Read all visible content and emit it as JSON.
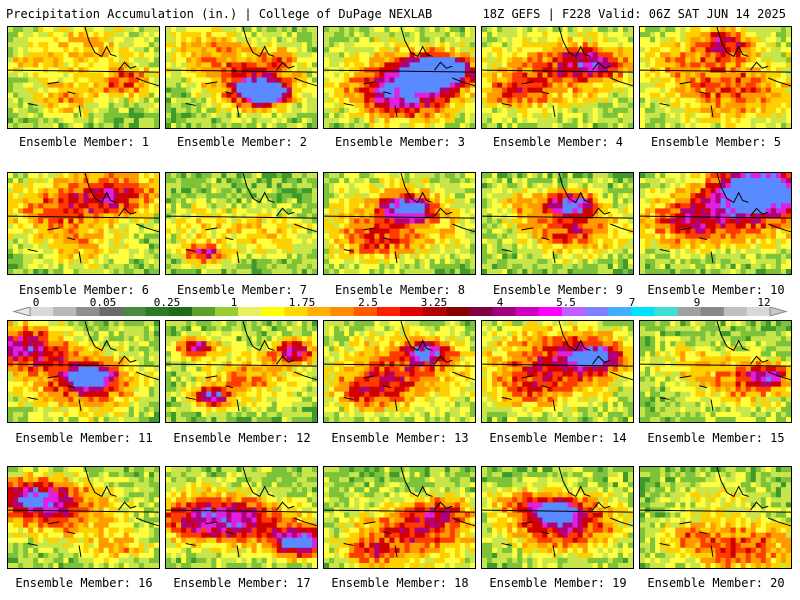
{
  "header": {
    "title_left": "Precipitation Accumulation (in.) | College of DuPage NEXLAB",
    "title_right": "18Z GEFS | F228 Valid: 06Z SAT JUN 14 2025"
  },
  "members": [
    "Ensemble Member: 1",
    "Ensemble Member: 2",
    "Ensemble Member: 3",
    "Ensemble Member: 4",
    "Ensemble Member: 5",
    "Ensemble Member: 6",
    "Ensemble Member: 7",
    "Ensemble Member: 8",
    "Ensemble Member: 9",
    "Ensemble Member: 10",
    "Ensemble Member: 11",
    "Ensemble Member: 12",
    "Ensemble Member: 13",
    "Ensemble Member: 14",
    "Ensemble Member: 15",
    "Ensemble Member: 16",
    "Ensemble Member: 17",
    "Ensemble Member: 18",
    "Ensemble Member: 19",
    "Ensemble Member: 20"
  ],
  "colorbar": {
    "labels": [
      "0",
      "0.05",
      "0.25",
      "1",
      "1.75",
      "2.5",
      "3.25",
      "4",
      "5.5",
      "7",
      "9",
      "12"
    ],
    "colors": [
      "#d9d9d9",
      "#b8b8b8",
      "#8f8f8f",
      "#6a6a6a",
      "#4a8a40",
      "#2e7a24",
      "#1e6b1a",
      "#5aa02a",
      "#9acd32",
      "#e8f060",
      "#ffff00",
      "#ffd800",
      "#ffb000",
      "#ff8c00",
      "#ff5a00",
      "#ff2000",
      "#e00000",
      "#b00000",
      "#8a0000",
      "#800040",
      "#a00080",
      "#d000c0",
      "#ff00ff",
      "#c060ff",
      "#8080ff",
      "#40b0ff",
      "#00e0ff",
      "#40e0d0",
      "#a0a0a0",
      "#888888",
      "#c0c0c0",
      "#d8d8d8"
    ]
  },
  "panel_fields": [
    [
      [
        0.5,
        0.2,
        0.3,
        0.25
      ],
      [
        0.4,
        0.7,
        0.18,
        0.3
      ],
      [
        0.15,
        0.35,
        0.12,
        0.18
      ],
      [
        0.8,
        0.55,
        0.15,
        0.38
      ]
    ],
    [
      [
        0.6,
        0.6,
        0.22,
        0.55
      ],
      [
        0.65,
        0.65,
        0.1,
        0.9
      ],
      [
        0.3,
        0.25,
        0.25,
        0.3
      ],
      [
        0.75,
        0.3,
        0.12,
        0.25
      ]
    ],
    [
      [
        0.55,
        0.55,
        0.35,
        0.45
      ],
      [
        0.75,
        0.45,
        0.15,
        0.9
      ],
      [
        0.8,
        0.42,
        0.08,
        1.0
      ],
      [
        0.5,
        0.7,
        0.2,
        0.35
      ]
    ],
    [
      [
        0.45,
        0.45,
        0.35,
        0.35
      ],
      [
        0.2,
        0.65,
        0.15,
        0.28
      ],
      [
        0.75,
        0.35,
        0.18,
        0.4
      ]
    ],
    [
      [
        0.6,
        0.6,
        0.35,
        0.4
      ],
      [
        0.55,
        0.15,
        0.15,
        0.45
      ],
      [
        0.2,
        0.3,
        0.2,
        0.18
      ]
    ],
    [
      [
        0.35,
        0.35,
        0.3,
        0.38
      ],
      [
        0.75,
        0.2,
        0.22,
        0.42
      ],
      [
        0.5,
        0.75,
        0.2,
        0.22
      ]
    ],
    [
      [
        0.25,
        0.5,
        0.2,
        0.22
      ],
      [
        0.25,
        0.8,
        0.1,
        0.55
      ],
      [
        0.7,
        0.6,
        0.2,
        0.25
      ]
    ],
    [
      [
        0.5,
        0.45,
        0.35,
        0.35
      ],
      [
        0.55,
        0.35,
        0.12,
        0.55
      ],
      [
        0.3,
        0.7,
        0.18,
        0.25
      ]
    ],
    [
      [
        0.6,
        0.55,
        0.25,
        0.45
      ],
      [
        0.6,
        0.3,
        0.12,
        0.55
      ],
      [
        0.3,
        0.3,
        0.15,
        0.25
      ]
    ],
    [
      [
        0.75,
        0.3,
        0.35,
        0.55
      ],
      [
        0.8,
        0.15,
        0.18,
        0.7
      ],
      [
        0.3,
        0.5,
        0.25,
        0.35
      ]
    ],
    [
      [
        0.1,
        0.25,
        0.22,
        0.55
      ],
      [
        0.5,
        0.6,
        0.3,
        0.48
      ],
      [
        0.55,
        0.55,
        0.1,
        0.65
      ]
    ],
    [
      [
        0.2,
        0.25,
        0.1,
        0.6
      ],
      [
        0.3,
        0.75,
        0.1,
        0.6
      ],
      [
        0.85,
        0.3,
        0.12,
        0.55
      ],
      [
        0.55,
        0.55,
        0.25,
        0.3
      ]
    ],
    [
      [
        0.5,
        0.5,
        0.35,
        0.38
      ],
      [
        0.7,
        0.3,
        0.12,
        0.55
      ],
      [
        0.3,
        0.7,
        0.18,
        0.28
      ]
    ],
    [
      [
        0.5,
        0.4,
        0.35,
        0.45
      ],
      [
        0.75,
        0.35,
        0.15,
        0.5
      ],
      [
        0.3,
        0.7,
        0.2,
        0.22
      ]
    ],
    [
      [
        0.7,
        0.6,
        0.25,
        0.35
      ],
      [
        0.3,
        0.4,
        0.2,
        0.18
      ],
      [
        0.85,
        0.55,
        0.1,
        0.42
      ]
    ],
    [
      [
        0.15,
        0.3,
        0.2,
        0.55
      ],
      [
        0.4,
        0.45,
        0.3,
        0.35
      ],
      [
        0.75,
        0.8,
        0.15,
        0.25
      ]
    ],
    [
      [
        0.25,
        0.5,
        0.25,
        0.55
      ],
      [
        0.9,
        0.75,
        0.15,
        0.75
      ],
      [
        0.6,
        0.55,
        0.25,
        0.35
      ]
    ],
    [
      [
        0.6,
        0.65,
        0.3,
        0.45
      ],
      [
        0.3,
        0.85,
        0.15,
        0.28
      ],
      [
        0.8,
        0.45,
        0.15,
        0.3
      ]
    ],
    [
      [
        0.55,
        0.55,
        0.28,
        0.55
      ],
      [
        0.5,
        0.45,
        0.1,
        0.65
      ],
      [
        0.25,
        0.35,
        0.15,
        0.25
      ]
    ],
    [
      [
        0.7,
        0.8,
        0.28,
        0.42
      ],
      [
        0.3,
        0.7,
        0.15,
        0.25
      ],
      [
        0.5,
        0.3,
        0.2,
        0.15
      ]
    ]
  ]
}
